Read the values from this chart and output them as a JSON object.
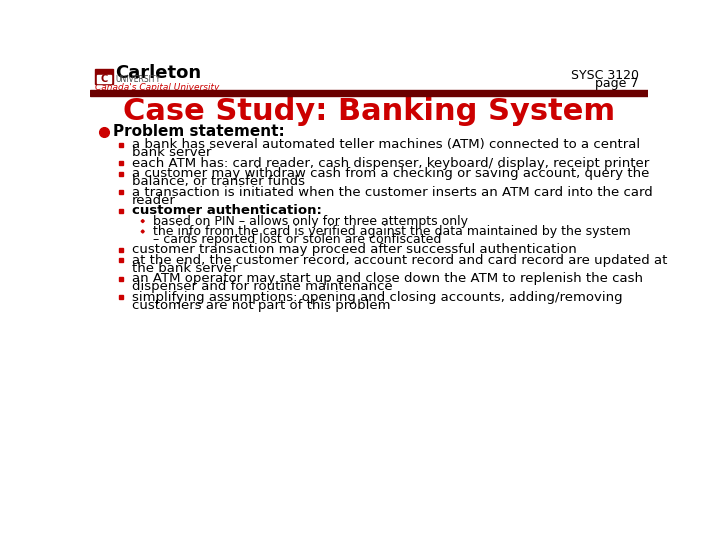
{
  "title": "Case Study: Banking System",
  "title_color": "#cc0000",
  "header_label_line1": "SYSC 3120",
  "header_label_line2": "page 7",
  "header_color": "#000000",
  "bg_color": "#ffffff",
  "header_bar_color": "#6b0000",
  "carleton_text": "Carleton",
  "carleton_sub": "UNIVERSITY",
  "carleton_tagline": "Canada's Capital University",
  "carleton_tagline_color": "#cc0000",
  "bullet_color": "#000000",
  "bullet_marker_color": "#cc0000",
  "sub_bullet_marker_color": "#cc0000",
  "main_bullet": "Problem statement:",
  "items": [
    "a bank has several automated teller machines (ATM) connected to a central\nbank server",
    "each ATM has: card reader, cash dispenser, keyboard/ display, receipt printer",
    "a customer may withdraw cash from a checking or saving account, query the\nbalance, or transfer funds",
    "a transaction is initiated when the customer inserts an ATM card into the card\nreader",
    "customer authentication:",
    "customer transaction may proceed after successful authentication",
    "at the end, the customer record, account record and card record are updated at\nthe bank server",
    "an ATM operator may start up and close down the ATM to replenish the cash\ndispenser and for routine maintenance",
    "simplifying assumptions: opening and closing accounts, adding/removing\ncustomers are not part of this problem"
  ],
  "sub_items": [
    "based on PIN – allows only for three attempts only",
    "the info from the card is verified against the data maintained by the system\n– cards reported lost or stolen are confiscated"
  ],
  "auth_index": 4,
  "font_size_title": 22,
  "font_size_header": 9,
  "font_size_main": 11,
  "font_size_item": 9.5,
  "font_size_sub": 9.0
}
